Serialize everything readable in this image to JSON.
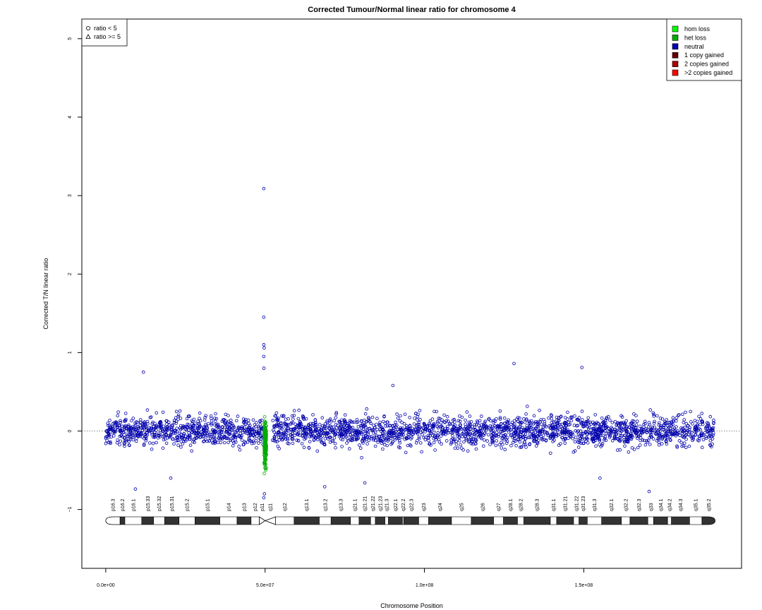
{
  "chart_data": {
    "type": "scatter",
    "title": "Corrected Tumour/Normal linear ratio for chromosome  4",
    "xlabel": "Chromosome Position",
    "ylabel": "Corrected T/N linear ratio",
    "xlim": [
      -7500000,
      199500000
    ],
    "ylim": [
      -1.75,
      5.25
    ],
    "x_ticks": [
      {
        "value": 0,
        "label": "0.0e+00"
      },
      {
        "value": 50000000,
        "label": "5.0e+07"
      },
      {
        "value": 100000000,
        "label": "1.0e+08"
      },
      {
        "value": 150000000,
        "label": "1.5e+08"
      }
    ],
    "y_ticks": [
      {
        "value": -1,
        "label": "−1"
      },
      {
        "value": 0,
        "label": "0"
      },
      {
        "value": 1,
        "label": "1"
      },
      {
        "value": 2,
        "label": "2"
      },
      {
        "value": 3,
        "label": "3"
      },
      {
        "value": 4,
        "label": "4"
      },
      {
        "value": 5,
        "label": "5"
      }
    ],
    "reference_line": {
      "y": 0,
      "style": "dotted"
    },
    "shape_legend": {
      "position": "top-left",
      "entries": [
        {
          "label": "ratio < 5",
          "shape": "circle"
        },
        {
          "label": "ratio >= 5",
          "shape": "triangle"
        }
      ]
    },
    "state_legend": {
      "position": "top-right",
      "entries": [
        {
          "label": "hom loss",
          "color": "#00ff00"
        },
        {
          "label": "het loss",
          "color": "#00aa00"
        },
        {
          "label": "neutral",
          "color": "#0000aa"
        },
        {
          "label": "1 copy gained",
          "color": "#660000"
        },
        {
          "label": "2 copies gained",
          "color": "#aa0000"
        },
        {
          "label": ">2 copies gained",
          "color": "#ff0000"
        }
      ]
    },
    "segments": [
      {
        "start": 0,
        "end": 49700000,
        "state": "neutral",
        "center": 0.0,
        "spread": 0.32
      },
      {
        "start": 49700000,
        "end": 50400000,
        "state": "het loss",
        "center": -0.15,
        "spread": 0.45
      },
      {
        "start": 52300000,
        "end": 191000000,
        "state": "neutral",
        "center": 0.0,
        "spread": 0.32
      }
    ],
    "outliers": [
      {
        "x": 49600000,
        "y": 3.09
      },
      {
        "x": 49600000,
        "y": 1.45
      },
      {
        "x": 49600000,
        "y": 1.1
      },
      {
        "x": 49700000,
        "y": 1.06
      },
      {
        "x": 49600000,
        "y": 0.95
      },
      {
        "x": 49650000,
        "y": 0.8
      },
      {
        "x": 11800000,
        "y": 0.75
      },
      {
        "x": 128100000,
        "y": 0.86
      },
      {
        "x": 149400000,
        "y": 0.81
      },
      {
        "x": 90100000,
        "y": 0.58
      },
      {
        "x": 9300000,
        "y": -0.74
      },
      {
        "x": 68700000,
        "y": -0.71
      },
      {
        "x": 81300000,
        "y": -0.66
      },
      {
        "x": 155100000,
        "y": -0.6
      },
      {
        "x": 170500000,
        "y": -0.77
      },
      {
        "x": 20400000,
        "y": -0.6
      },
      {
        "x": 49600000,
        "y": -0.85
      },
      {
        "x": 49800000,
        "y": -0.8
      }
    ],
    "ideogram": {
      "chromosome": "4",
      "centromere": 50000000,
      "bands": [
        {
          "name": "p16.3",
          "start": 0,
          "end": 4500000,
          "stain": "gneg"
        },
        {
          "name": "p16.2",
          "start": 4500000,
          "end": 6000000,
          "stain": "gpos"
        },
        {
          "name": "p16.1",
          "start": 6000000,
          "end": 11300000,
          "stain": "gneg"
        },
        {
          "name": "p15.33",
          "start": 11300000,
          "end": 15000000,
          "stain": "gpos"
        },
        {
          "name": "p15.32",
          "start": 15000000,
          "end": 18500000,
          "stain": "gneg"
        },
        {
          "name": "p15.31",
          "start": 18500000,
          "end": 23000000,
          "stain": "gpos"
        },
        {
          "name": "p15.2",
          "start": 23000000,
          "end": 28000000,
          "stain": "gneg"
        },
        {
          "name": "p15.1",
          "start": 28000000,
          "end": 35800000,
          "stain": "gpos"
        },
        {
          "name": "p14",
          "start": 35800000,
          "end": 41200000,
          "stain": "gneg"
        },
        {
          "name": "p13",
          "start": 41200000,
          "end": 45600000,
          "stain": "gpos"
        },
        {
          "name": "p12",
          "start": 45600000,
          "end": 48200000,
          "stain": "gneg"
        },
        {
          "name": "p11",
          "start": 48200000,
          "end": 50000000,
          "stain": "acen"
        },
        {
          "name": "q11",
          "start": 50000000,
          "end": 53300000,
          "stain": "acen"
        },
        {
          "name": "q12",
          "start": 53300000,
          "end": 59100000,
          "stain": "gneg"
        },
        {
          "name": "q13.1",
          "start": 59100000,
          "end": 67000000,
          "stain": "gpos"
        },
        {
          "name": "q13.2",
          "start": 67000000,
          "end": 70700000,
          "stain": "gneg"
        },
        {
          "name": "q13.3",
          "start": 70700000,
          "end": 76800000,
          "stain": "gpos"
        },
        {
          "name": "q21.1",
          "start": 76800000,
          "end": 79500000,
          "stain": "gneg"
        },
        {
          "name": "q21.21",
          "start": 79500000,
          "end": 83100000,
          "stain": "gpos"
        },
        {
          "name": "q21.22",
          "start": 83100000,
          "end": 84600000,
          "stain": "gneg"
        },
        {
          "name": "q21.23",
          "start": 84600000,
          "end": 87600000,
          "stain": "gpos"
        },
        {
          "name": "q21.3",
          "start": 87600000,
          "end": 88700000,
          "stain": "gneg"
        },
        {
          "name": "q22.1",
          "start": 88700000,
          "end": 93100000,
          "stain": "gpos"
        },
        {
          "name": "q22.2",
          "start": 93100000,
          "end": 93500000,
          "stain": "gneg"
        },
        {
          "name": "q22.3",
          "start": 93500000,
          "end": 98200000,
          "stain": "gpos"
        },
        {
          "name": "q23",
          "start": 98200000,
          "end": 101300000,
          "stain": "gneg"
        },
        {
          "name": "q24",
          "start": 101300000,
          "end": 108500000,
          "stain": "gpos"
        },
        {
          "name": "q25",
          "start": 108500000,
          "end": 114700000,
          "stain": "gneg"
        },
        {
          "name": "q26",
          "start": 114700000,
          "end": 121700000,
          "stain": "gpos"
        },
        {
          "name": "q27",
          "start": 121700000,
          "end": 124800000,
          "stain": "gneg"
        },
        {
          "name": "q28.1",
          "start": 124800000,
          "end": 129200000,
          "stain": "gpos"
        },
        {
          "name": "q28.2",
          "start": 129200000,
          "end": 131200000,
          "stain": "gneg"
        },
        {
          "name": "q28.3",
          "start": 131200000,
          "end": 139500000,
          "stain": "gpos"
        },
        {
          "name": "q31.1",
          "start": 139500000,
          "end": 141500000,
          "stain": "gneg"
        },
        {
          "name": "q31.21",
          "start": 141500000,
          "end": 146800000,
          "stain": "gpos"
        },
        {
          "name": "q31.22",
          "start": 146800000,
          "end": 148500000,
          "stain": "gneg"
        },
        {
          "name": "q31.23",
          "start": 148500000,
          "end": 151100000,
          "stain": "gpos"
        },
        {
          "name": "q31.3",
          "start": 151100000,
          "end": 155600000,
          "stain": "gneg"
        },
        {
          "name": "q32.1",
          "start": 155600000,
          "end": 161800000,
          "stain": "gpos"
        },
        {
          "name": "q32.2",
          "start": 161800000,
          "end": 164500000,
          "stain": "gneg"
        },
        {
          "name": "q32.3",
          "start": 164500000,
          "end": 170100000,
          "stain": "gpos"
        },
        {
          "name": "q33",
          "start": 170100000,
          "end": 171900000,
          "stain": "gneg"
        },
        {
          "name": "q34.1",
          "start": 171900000,
          "end": 176300000,
          "stain": "gpos"
        },
        {
          "name": "q34.2",
          "start": 176300000,
          "end": 177500000,
          "stain": "gneg"
        },
        {
          "name": "q34.3",
          "start": 177500000,
          "end": 183200000,
          "stain": "gpos"
        },
        {
          "name": "q35.1",
          "start": 183200000,
          "end": 187100000,
          "stain": "gneg"
        },
        {
          "name": "q35.2",
          "start": 187100000,
          "end": 191200000,
          "stain": "gpos"
        }
      ]
    }
  }
}
